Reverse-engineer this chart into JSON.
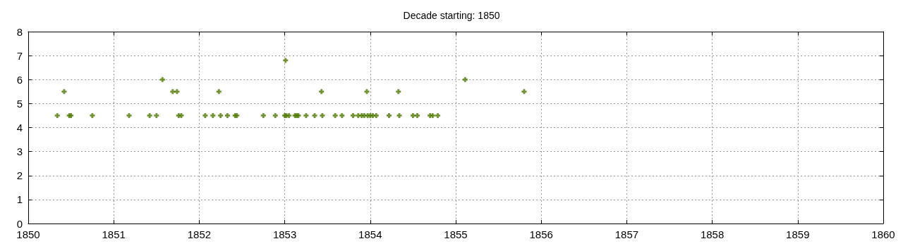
{
  "chart_data": {
    "type": "scatter",
    "title": "Decade starting: 1850",
    "x": [
      1850.34,
      1850.48,
      1850.5,
      1850.75,
      1851.18,
      1851.42,
      1851.5,
      1851.76,
      1851.79,
      1852.07,
      1852.16,
      1852.25,
      1852.33,
      1852.42,
      1852.44,
      1852.75,
      1852.89,
      1853.0,
      1853.02,
      1853.05,
      1853.12,
      1853.14,
      1853.16,
      1853.25,
      1853.35,
      1853.44,
      1853.59,
      1853.67,
      1853.8,
      1853.86,
      1853.9,
      1853.93,
      1853.97,
      1854.0,
      1854.03,
      1854.07,
      1854.22,
      1854.34,
      1854.5,
      1854.55,
      1854.7,
      1854.73,
      1854.79,
      1850.42,
      1851.69,
      1851.74,
      1852.23,
      1853.43,
      1853.96,
      1854.33,
      1855.8,
      1851.57,
      1855.11,
      1853.01
    ],
    "values": [
      4.5,
      4.5,
      4.5,
      4.5,
      4.5,
      4.5,
      4.5,
      4.5,
      4.5,
      4.5,
      4.5,
      4.5,
      4.5,
      4.5,
      4.5,
      4.5,
      4.5,
      4.5,
      4.5,
      4.5,
      4.5,
      4.5,
      4.5,
      4.5,
      4.5,
      4.5,
      4.5,
      4.5,
      4.5,
      4.5,
      4.5,
      4.5,
      4.5,
      4.5,
      4.5,
      4.5,
      4.5,
      4.5,
      4.5,
      4.5,
      4.5,
      4.5,
      4.5,
      5.5,
      5.5,
      5.5,
      5.5,
      5.5,
      5.5,
      5.5,
      5.5,
      6,
      6,
      6.8
    ],
    "color": "#4d7a00",
    "marker": "cross",
    "grid": true,
    "xlim": [
      1850,
      1860
    ],
    "xticks": [
      1850,
      1851,
      1852,
      1853,
      1854,
      1855,
      1856,
      1857,
      1858,
      1859,
      1860
    ],
    "ylim": [
      0,
      8
    ],
    "yticks": [
      0,
      1,
      2,
      3,
      4,
      5,
      6,
      7,
      8
    ]
  }
}
